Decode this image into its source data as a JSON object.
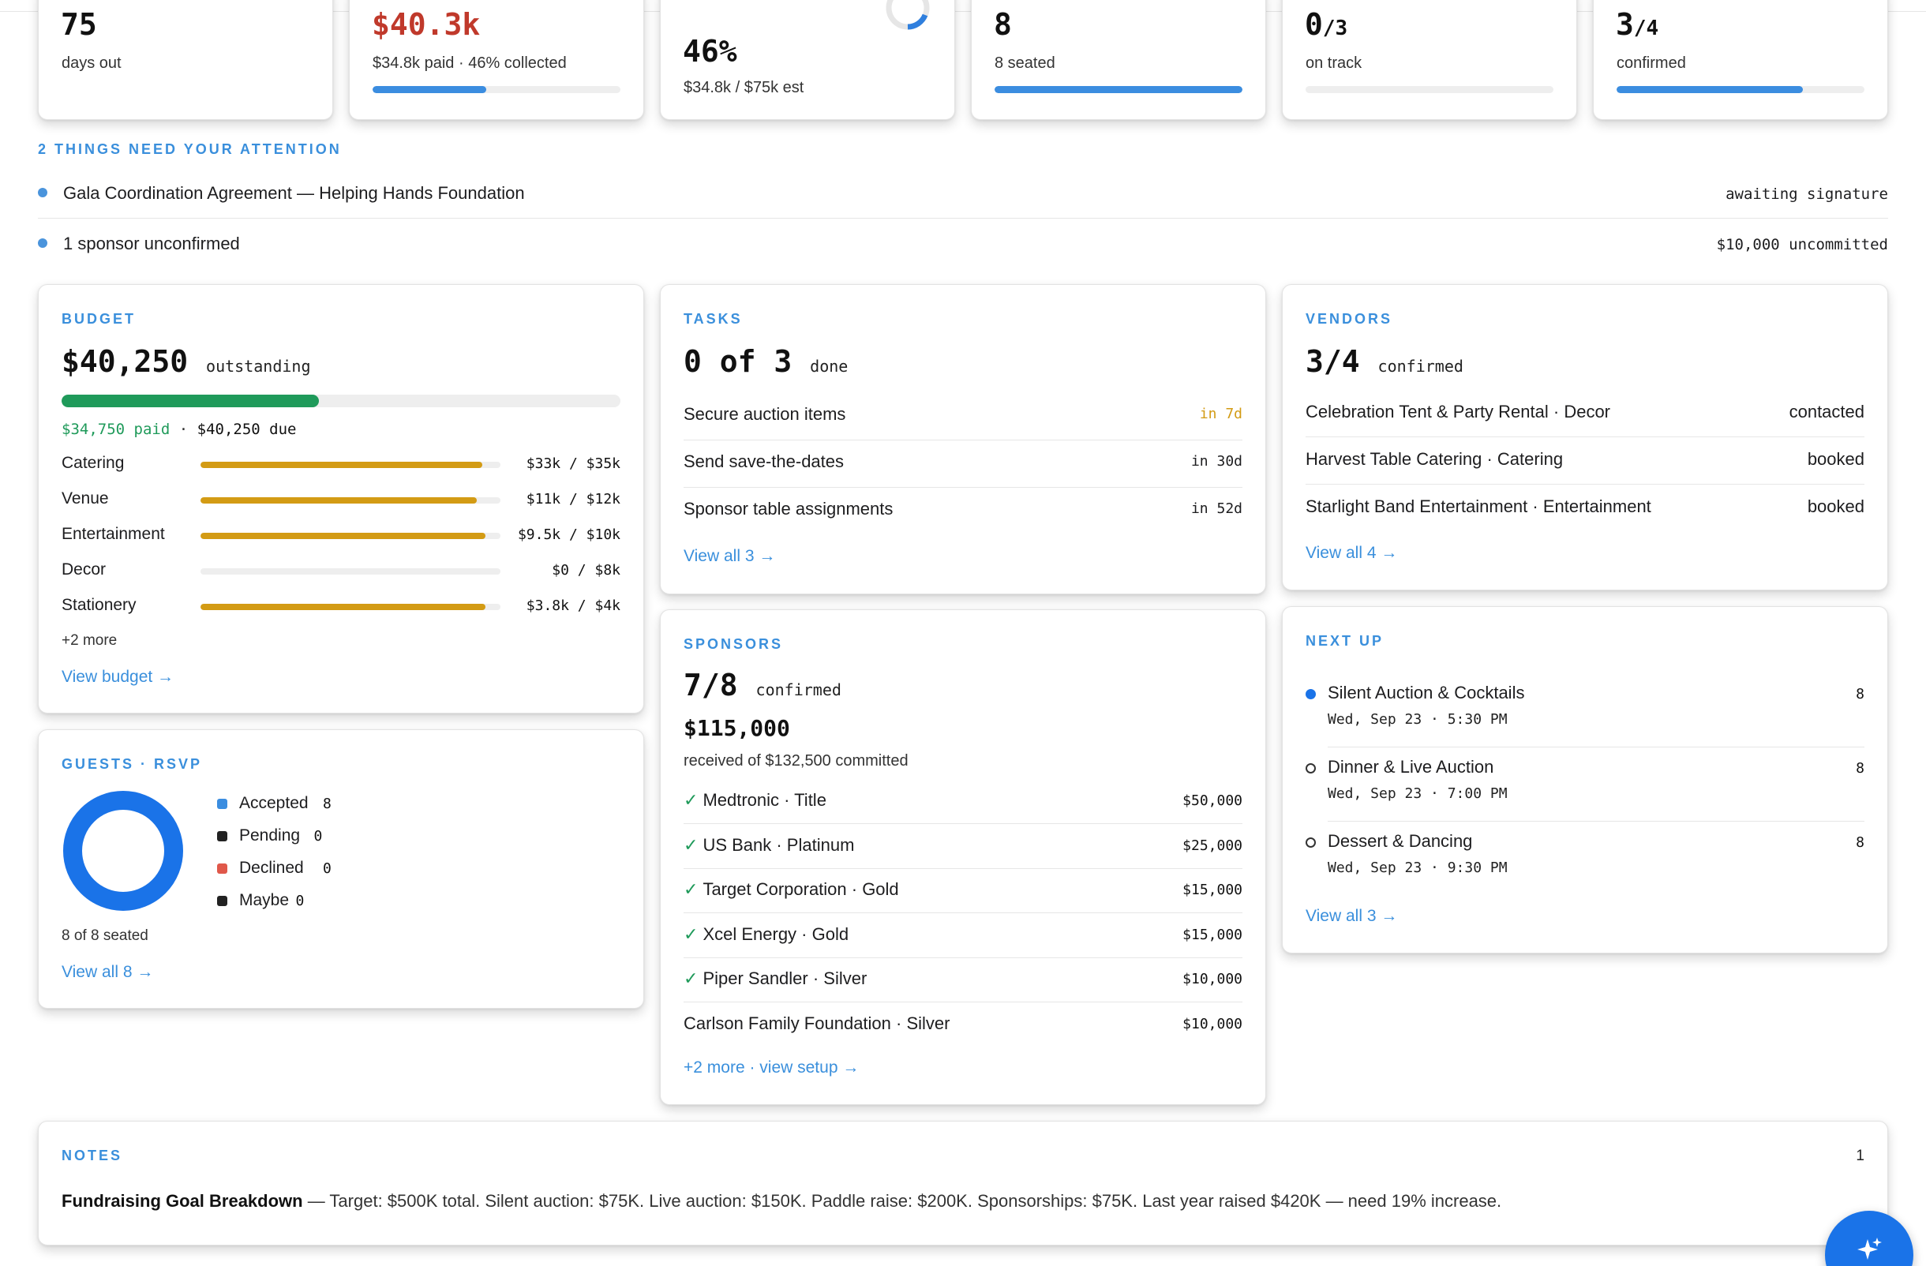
{
  "stats": [
    {
      "value": "75",
      "label": "days out",
      "progress": null
    },
    {
      "value": "$40.3k",
      "label": "$34.8k paid · 46% collected",
      "progress": 0.46,
      "color": "#c0392b"
    },
    {
      "value": "46%",
      "label": "$34.8k / $75k est",
      "progress": null
    },
    {
      "value": "8",
      "label": "8 seated",
      "progress": 1.0
    },
    {
      "value": "0",
      "suffix": "/3",
      "label": "on track",
      "progress": 0
    },
    {
      "value": "3",
      "suffix": "/4",
      "label": "confirmed",
      "progress": 0.75
    }
  ],
  "attention": {
    "title": "2 THINGS NEED YOUR ATTENTION",
    "items": [
      {
        "text": "Gala Coordination Agreement — Helping Hands Foundation",
        "status": "awaiting signature"
      },
      {
        "text": "1 sponsor unconfirmed",
        "status": "$10,000 uncommitted"
      }
    ]
  },
  "budget": {
    "title": "BUDGET",
    "amount": "$40,250",
    "amount_label": "outstanding",
    "progress": 0.46,
    "paid": "$34,750 paid",
    "separator": "·",
    "due": "$40,250 due",
    "lines": [
      {
        "name": "Catering",
        "amount": "$33k / $35k",
        "progress": 0.94
      },
      {
        "name": "Venue",
        "amount": "$11k / $12k",
        "progress": 0.92
      },
      {
        "name": "Entertainment",
        "amount": "$9.5k / $10k",
        "progress": 0.95
      },
      {
        "name": "Decor",
        "amount": "$0 / $8k",
        "progress": 0
      },
      {
        "name": "Stationery",
        "amount": "$3.8k / $4k",
        "progress": 0.95
      }
    ],
    "more": "+2 more",
    "link": "View budget →"
  },
  "tasks": {
    "title": "TASKS",
    "summary_num": "0 of 3",
    "summary_label": "done",
    "items": [
      {
        "text": "Secure auction items",
        "due": "in 7d",
        "color": "#d39b14"
      },
      {
        "text": "Send save-the-dates",
        "due": "in 30d",
        "color": "#1d1d1f"
      },
      {
        "text": "Sponsor table assignments",
        "due": "in 52d",
        "color": "#1d1d1f"
      }
    ],
    "link": "View all 3 →"
  },
  "vendors": {
    "title": "VENDORS",
    "summary_num": "3/4",
    "summary_label": "confirmed",
    "items": [
      {
        "text": "Celebration Tent & Party Rental · Decor",
        "status": "contacted"
      },
      {
        "text": "Harvest Table Catering · Catering",
        "status": "booked"
      },
      {
        "text": "Starlight Band Entertainment · Entertainment",
        "status": "booked"
      }
    ],
    "link": "View all 4 →"
  },
  "guests": {
    "title": "GUESTS · RSVP",
    "legend": [
      {
        "label": "Accepted",
        "count": "8",
        "color": "#3b8de0"
      },
      {
        "label": "Pending",
        "count": "0",
        "color": "#222222"
      },
      {
        "label": "Declined",
        "count": "0",
        "color": "#e0584a"
      },
      {
        "label": "Maybe",
        "count": "0",
        "color": "#222222"
      }
    ],
    "accepted_fraction": 1.0,
    "seated": "8 of 8 seated",
    "link": "View all 8 →"
  },
  "sponsors": {
    "title": "SPONSORS",
    "summary_num": "7/8",
    "summary_label": "confirmed",
    "received": "$115,000",
    "received_label": "received of $132,500 committed",
    "items": [
      {
        "check": "✓",
        "text": "Medtronic · Title",
        "amount": "$50,000"
      },
      {
        "check": "✓",
        "text": "US Bank · Platinum",
        "amount": "$25,000"
      },
      {
        "check": "✓",
        "text": "Target Corporation · Gold",
        "amount": "$15,000"
      },
      {
        "check": "✓",
        "text": "Xcel Energy · Gold",
        "amount": "$15,000"
      },
      {
        "check": "✓",
        "text": "Piper Sandler · Silver",
        "amount": "$10,000"
      },
      {
        "check": "",
        "text": "Carlson Family Foundation · Silver",
        "amount": "$10,000"
      }
    ],
    "link": "+2 more · view setup →"
  },
  "nextup": {
    "title": "NEXT UP",
    "items": [
      {
        "title": "Silent Auction & Cocktails",
        "time": "Wed, Sep 23 · 5:30 PM",
        "count": "8",
        "active": true
      },
      {
        "title": "Dinner & Live Auction",
        "time": "Wed, Sep 23 · 7:00 PM",
        "count": "8",
        "active": false
      },
      {
        "title": "Dessert & Dancing",
        "time": "Wed, Sep 23 · 9:30 PM",
        "count": "8",
        "active": false
      }
    ],
    "link": "View all 3 →"
  },
  "notes": {
    "title": "NOTES",
    "count": "1",
    "note_title": "Fundraising Goal Breakdown",
    "note_body": " — Target: $500K total. Silent auction: $75K. Live auction: $150K. Paddle raise: $200K. Sponsorships: $75K. Last year raised $420K — need 19% increase."
  },
  "fab": {
    "icon": "sparkle-icon"
  }
}
